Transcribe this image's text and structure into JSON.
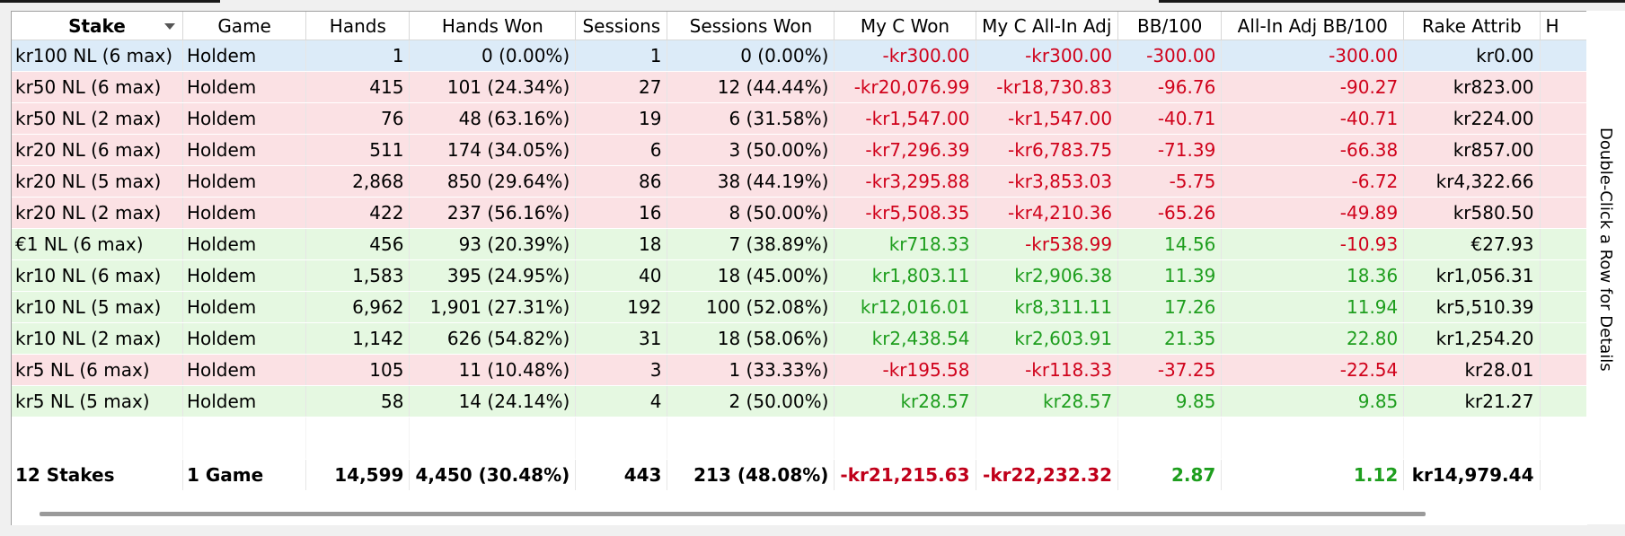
{
  "side_hint": "Double-Click a Row for Details",
  "columns": [
    "Stake",
    "Game",
    "Hands",
    "Hands Won",
    "Sessions",
    "Sessions Won",
    "My C Won",
    "My C All-In Adj",
    "BB/100",
    "All-In Adj BB/100",
    "Rake Attrib",
    "H"
  ],
  "sorted_column": "Stake",
  "rows": [
    {
      "stake": "kr100 NL (6 max)",
      "game": "Holdem",
      "hands": "1",
      "hands_won": "0 (0.00%)",
      "sessions": "1",
      "sessions_won": "0 (0.00%)",
      "c_won": "-kr300.00",
      "c_allin": "-kr300.00",
      "bb100": "-300.00",
      "allin_bb100": "-300.00",
      "rake": "kr0.00",
      "status": "selected"
    },
    {
      "stake": "kr50 NL (6 max)",
      "game": "Holdem",
      "hands": "415",
      "hands_won": "101 (24.34%)",
      "sessions": "27",
      "sessions_won": "12 (44.44%)",
      "c_won": "-kr20,076.99",
      "c_allin": "-kr18,730.83",
      "bb100": "-96.76",
      "allin_bb100": "-90.27",
      "rake": "kr823.00",
      "status": "loss"
    },
    {
      "stake": "kr50 NL (2 max)",
      "game": "Holdem",
      "hands": "76",
      "hands_won": "48 (63.16%)",
      "sessions": "19",
      "sessions_won": "6 (31.58%)",
      "c_won": "-kr1,547.00",
      "c_allin": "-kr1,547.00",
      "bb100": "-40.71",
      "allin_bb100": "-40.71",
      "rake": "kr224.00",
      "status": "loss"
    },
    {
      "stake": "kr20 NL (6 max)",
      "game": "Holdem",
      "hands": "511",
      "hands_won": "174 (34.05%)",
      "sessions": "6",
      "sessions_won": "3 (50.00%)",
      "c_won": "-kr7,296.39",
      "c_allin": "-kr6,783.75",
      "bb100": "-71.39",
      "allin_bb100": "-66.38",
      "rake": "kr857.00",
      "status": "loss"
    },
    {
      "stake": "kr20 NL (5 max)",
      "game": "Holdem",
      "hands": "2,868",
      "hands_won": "850 (29.64%)",
      "sessions": "86",
      "sessions_won": "38 (44.19%)",
      "c_won": "-kr3,295.88",
      "c_allin": "-kr3,853.03",
      "bb100": "-5.75",
      "allin_bb100": "-6.72",
      "rake": "kr4,322.66",
      "status": "loss"
    },
    {
      "stake": "kr20 NL (2 max)",
      "game": "Holdem",
      "hands": "422",
      "hands_won": "237 (56.16%)",
      "sessions": "16",
      "sessions_won": "8 (50.00%)",
      "c_won": "-kr5,508.35",
      "c_allin": "-kr4,210.36",
      "bb100": "-65.26",
      "allin_bb100": "-49.89",
      "rake": "kr580.50",
      "status": "loss"
    },
    {
      "stake": "€1 NL (6 max)",
      "game": "Holdem",
      "hands": "456",
      "hands_won": "93 (20.39%)",
      "sessions": "18",
      "sessions_won": "7 (38.89%)",
      "c_won": "kr718.33",
      "c_allin": "-kr538.99",
      "bb100": "14.56",
      "allin_bb100": "-10.93",
      "rake": "€27.93",
      "status": "win"
    },
    {
      "stake": "kr10 NL (6 max)",
      "game": "Holdem",
      "hands": "1,583",
      "hands_won": "395 (24.95%)",
      "sessions": "40",
      "sessions_won": "18 (45.00%)",
      "c_won": "kr1,803.11",
      "c_allin": "kr2,906.38",
      "bb100": "11.39",
      "allin_bb100": "18.36",
      "rake": "kr1,056.31",
      "status": "win"
    },
    {
      "stake": "kr10 NL (5 max)",
      "game": "Holdem",
      "hands": "6,962",
      "hands_won": "1,901 (27.31%)",
      "sessions": "192",
      "sessions_won": "100 (52.08%)",
      "c_won": "kr12,016.01",
      "c_allin": "kr8,311.11",
      "bb100": "17.26",
      "allin_bb100": "11.94",
      "rake": "kr5,510.39",
      "status": "win"
    },
    {
      "stake": "kr10 NL (2 max)",
      "game": "Holdem",
      "hands": "1,142",
      "hands_won": "626 (54.82%)",
      "sessions": "31",
      "sessions_won": "18 (58.06%)",
      "c_won": "kr2,438.54",
      "c_allin": "kr2,603.91",
      "bb100": "21.35",
      "allin_bb100": "22.80",
      "rake": "kr1,254.20",
      "status": "win"
    },
    {
      "stake": "kr5 NL (6 max)",
      "game": "Holdem",
      "hands": "105",
      "hands_won": "11 (10.48%)",
      "sessions": "3",
      "sessions_won": "1 (33.33%)",
      "c_won": "-kr195.58",
      "c_allin": "-kr118.33",
      "bb100": "-37.25",
      "allin_bb100": "-22.54",
      "rake": "kr28.01",
      "status": "loss"
    },
    {
      "stake": "kr5 NL (5 max)",
      "game": "Holdem",
      "hands": "58",
      "hands_won": "14 (24.14%)",
      "sessions": "4",
      "sessions_won": "2 (50.00%)",
      "c_won": "kr28.57",
      "c_allin": "kr28.57",
      "bb100": "9.85",
      "allin_bb100": "9.85",
      "rake": "kr21.27",
      "status": "win"
    }
  ],
  "totals": {
    "stake": "12 Stakes",
    "game": "1 Game",
    "hands": "14,599",
    "hands_won": "4,450 (30.48%)",
    "sessions": "443",
    "sessions_won": "213 (48.08%)",
    "c_won": "-kr21,215.63",
    "c_allin": "-kr22,232.32",
    "bb100": "2.87",
    "allin_bb100": "1.12",
    "rake": "kr14,979.44"
  },
  "colors": {
    "selected_row": "#dcebf8",
    "loss_row": "#fbe1e4",
    "win_row": "#e5f8e1",
    "negative_text": "#d0021b",
    "positive_text": "#1e9e1e"
  }
}
